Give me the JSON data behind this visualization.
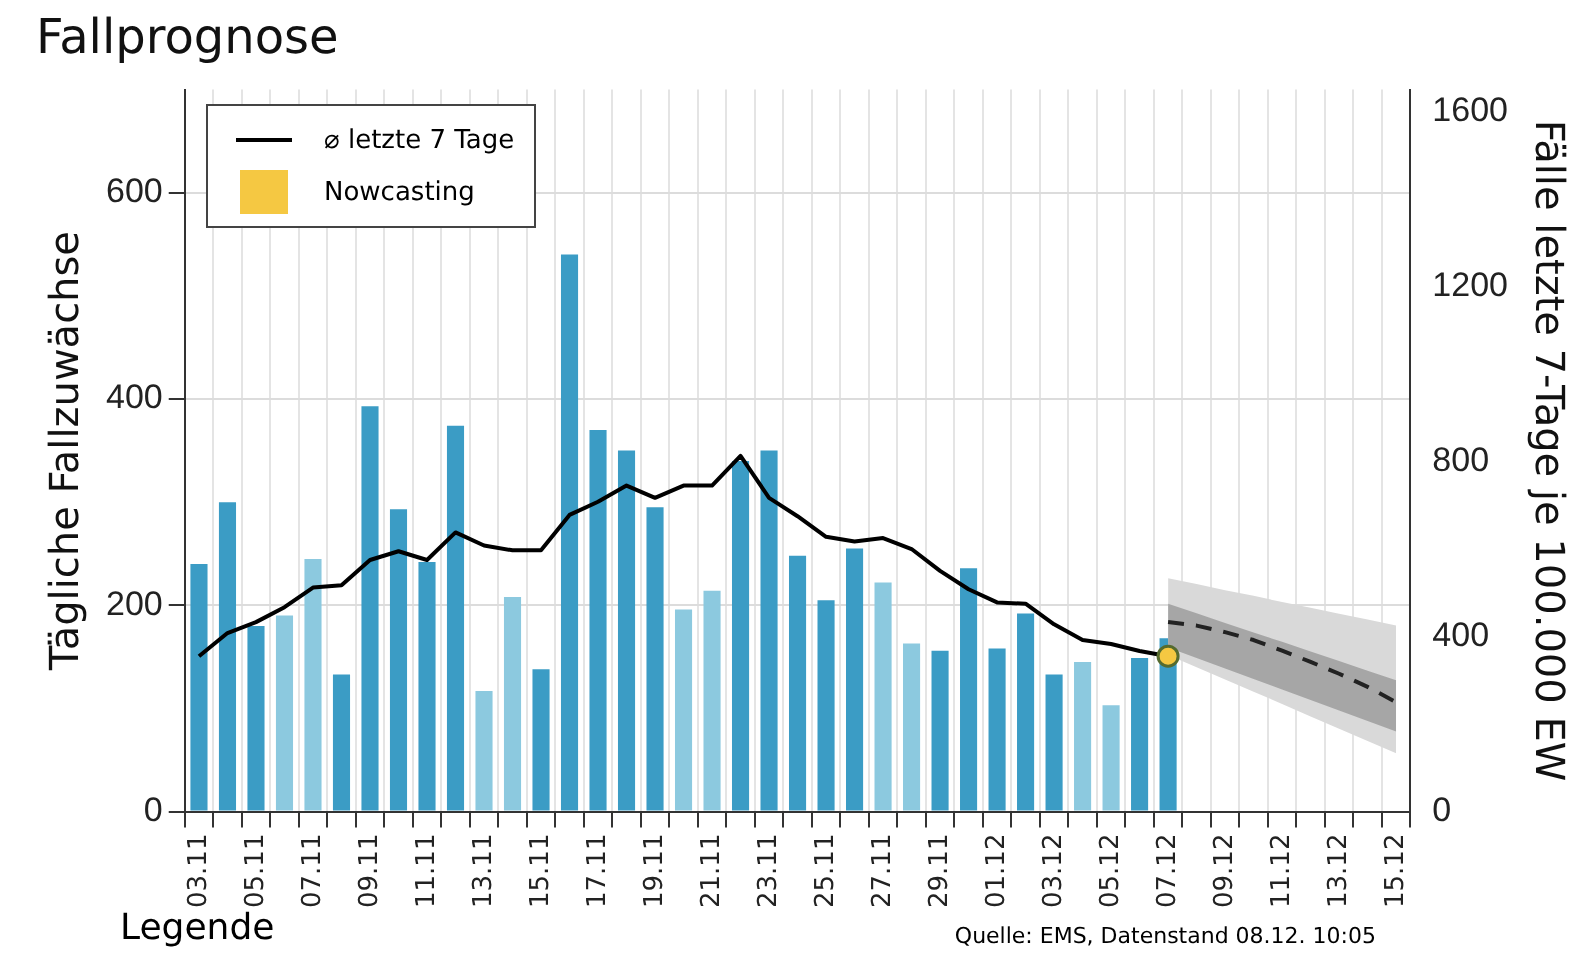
{
  "chart_data": {
    "type": "bar",
    "title": "Fallprognose",
    "ylabel": "Tägliche Fallzuwächse",
    "y2label": "Fälle letzte 7-Tage je 100.000 EW",
    "categories": [
      "03.11",
      null,
      "05.11",
      null,
      "07.11",
      null,
      "09.11",
      null,
      "11.11",
      null,
      "13.11",
      null,
      "15.11",
      null,
      "17.11",
      null,
      "19.11",
      null,
      "21.11",
      null,
      "23.11",
      null,
      "25.11",
      null,
      "27.11",
      null,
      "29.11",
      null,
      "01.12",
      null,
      "03.12",
      null,
      "05.12",
      null,
      "07.12",
      null,
      "09.12",
      null,
      "11.12",
      null,
      "13.12",
      null,
      "15.12"
    ],
    "series": [
      {
        "colors": [
          "#3b9cc5",
          "#3b9cc5",
          "#3b9cc5",
          "#8cc9df",
          "#8cc9df",
          "#3b9cc5",
          "#3b9cc5",
          "#3b9cc5",
          "#3b9cc5",
          "#3b9cc5",
          "#8cc9df",
          "#8cc9df",
          "#3b9cc5",
          "#3b9cc5",
          "#3b9cc5",
          "#3b9cc5",
          "#3b9cc5",
          "#8cc9df",
          "#8cc9df",
          "#3b9cc5",
          "#3b9cc5",
          "#3b9cc5",
          "#3b9cc5",
          "#3b9cc5",
          "#8cc9df",
          "#8cc9df",
          "#3b9cc5",
          "#3b9cc5",
          "#3b9cc5",
          "#3b9cc5",
          "#3b9cc5",
          "#8cc9df",
          "#8cc9df",
          "#3b9cc5",
          "#3b9cc5",
          "#3b9cc5",
          "#3b9cc5",
          "#3b9cc5",
          "#3b9cc5",
          "#3b9cc5",
          "#3b9cc5",
          "#3b9cc5",
          "#3b9cc5"
        ],
        "values": [
          240,
          300,
          180,
          190,
          245,
          133,
          393,
          293,
          242,
          374,
          117,
          208,
          138,
          540,
          370,
          350,
          295,
          196,
          214,
          340,
          350,
          248,
          205,
          255,
          222,
          163,
          156,
          236,
          158,
          192,
          133,
          145,
          103,
          149,
          168,
          null,
          null,
          null,
          null,
          null,
          null,
          null,
          null
        ]
      },
      {
        "type": "line",
        "color": "#d9d9d9",
        "axis": "y2",
        "values": [
          null,
          null,
          null,
          null,
          null,
          null,
          null,
          null,
          null,
          null,
          null,
          null,
          null,
          null,
          null,
          null,
          null,
          null,
          null,
          null,
          null,
          null,
          null,
          null,
          null,
          null,
          null,
          null,
          null,
          null,
          null,
          null,
          null,
          null,
          null,
          null,
          null,
          null,
          null,
          null,
          null,
          null,
          null
        ],
        "lower": [
          null,
          null,
          null,
          null,
          null,
          null,
          null,
          null,
          null,
          null,
          null,
          null,
          null,
          null,
          null,
          null,
          null,
          null,
          null,
          null,
          null,
          null,
          null,
          null,
          null,
          null,
          null,
          null,
          null,
          null,
          null,
          null,
          null,
          null,
          358,
          330,
          302,
          274,
          246,
          217,
          189,
          161,
          133
        ],
        "upper": [
          null,
          null,
          null,
          null,
          null,
          null,
          null,
          null,
          null,
          null,
          null,
          null,
          null,
          null,
          null,
          null,
          null,
          null,
          null,
          null,
          null,
          null,
          null,
          null,
          null,
          null,
          null,
          null,
          null,
          null,
          null,
          null,
          null,
          null,
          533,
          520,
          506,
          493,
          479,
          466,
          452,
          439,
          425
        ]
      },
      {
        "type": "line",
        "color": "#a6a6a6",
        "axis": "y2",
        "values": [
          null,
          null,
          null,
          null,
          null,
          null,
          null,
          null,
          null,
          null,
          null,
          null,
          null,
          null,
          null,
          null,
          null,
          null,
          null,
          null,
          null,
          null,
          null,
          null,
          null,
          null,
          null,
          null,
          null,
          null,
          null,
          null,
          null,
          null,
          null,
          null,
          null,
          null,
          null,
          null,
          null,
          null,
          null
        ],
        "lower": [
          null,
          null,
          null,
          null,
          null,
          null,
          null,
          null,
          null,
          null,
          null,
          null,
          null,
          null,
          null,
          null,
          null,
          null,
          null,
          null,
          null,
          null,
          null,
          null,
          null,
          null,
          null,
          null,
          null,
          null,
          null,
          null,
          null,
          null,
          375,
          351,
          327,
          303,
          279,
          255,
          231,
          207,
          183
        ],
        "upper": [
          null,
          null,
          null,
          null,
          null,
          null,
          null,
          null,
          null,
          null,
          null,
          null,
          null,
          null,
          null,
          null,
          null,
          null,
          null,
          null,
          null,
          null,
          null,
          null,
          null,
          null,
          null,
          null,
          null,
          null,
          null,
          null,
          null,
          null,
          475,
          453,
          431,
          409,
          388,
          366,
          344,
          322,
          300
        ]
      },
      {
        "type": "line",
        "color": "#222222",
        "axis": "y2",
        "line_style": "dashed",
        "values": [
          null,
          null,
          null,
          null,
          null,
          null,
          null,
          null,
          null,
          null,
          null,
          null,
          null,
          null,
          null,
          null,
          null,
          null,
          null,
          null,
          null,
          null,
          null,
          null,
          null,
          null,
          null,
          null,
          null,
          null,
          null,
          null,
          null,
          null,
          433,
          425,
          410,
          392,
          368,
          342,
          315,
          285,
          250
        ]
      },
      {
        "type": "line",
        "name": "⌀ letzte 7 Tage",
        "color": "#000000",
        "axis": "y2",
        "values": [
          355,
          408,
          433,
          467,
          512,
          517,
          575,
          595,
          575,
          638,
          608,
          597,
          597,
          678,
          708,
          745,
          717,
          745,
          745,
          813,
          717,
          675,
          628,
          617,
          625,
          600,
          550,
          508,
          478,
          475,
          428,
          392,
          383,
          367,
          355,
          null,
          null,
          null,
          null,
          null,
          null,
          null,
          null
        ]
      },
      {
        "type": "scatter",
        "name": "Nowcasting",
        "color": "#f5c842",
        "axis": "y2",
        "marker": "circle",
        "values": [
          null,
          null,
          null,
          null,
          null,
          null,
          null,
          null,
          null,
          null,
          null,
          null,
          null,
          null,
          null,
          null,
          null,
          null,
          null,
          null,
          null,
          null,
          null,
          null,
          null,
          null,
          null,
          null,
          null,
          null,
          null,
          null,
          null,
          null,
          355,
          null,
          null,
          null,
          null,
          null,
          null,
          null,
          null
        ]
      }
    ],
    "ylim": [
      0,
      700
    ],
    "yticks": [
      0,
      200,
      400,
      600
    ],
    "y2lim": [
      0,
      1650
    ],
    "y2ticks": [
      0,
      400,
      800,
      1200,
      1600
    ],
    "grid": true,
    "legend": "top left",
    "marker": "none",
    "annotations": [
      "Legende",
      "Quelle: EMS, Datenstand 08.12. 10:05"
    ]
  }
}
